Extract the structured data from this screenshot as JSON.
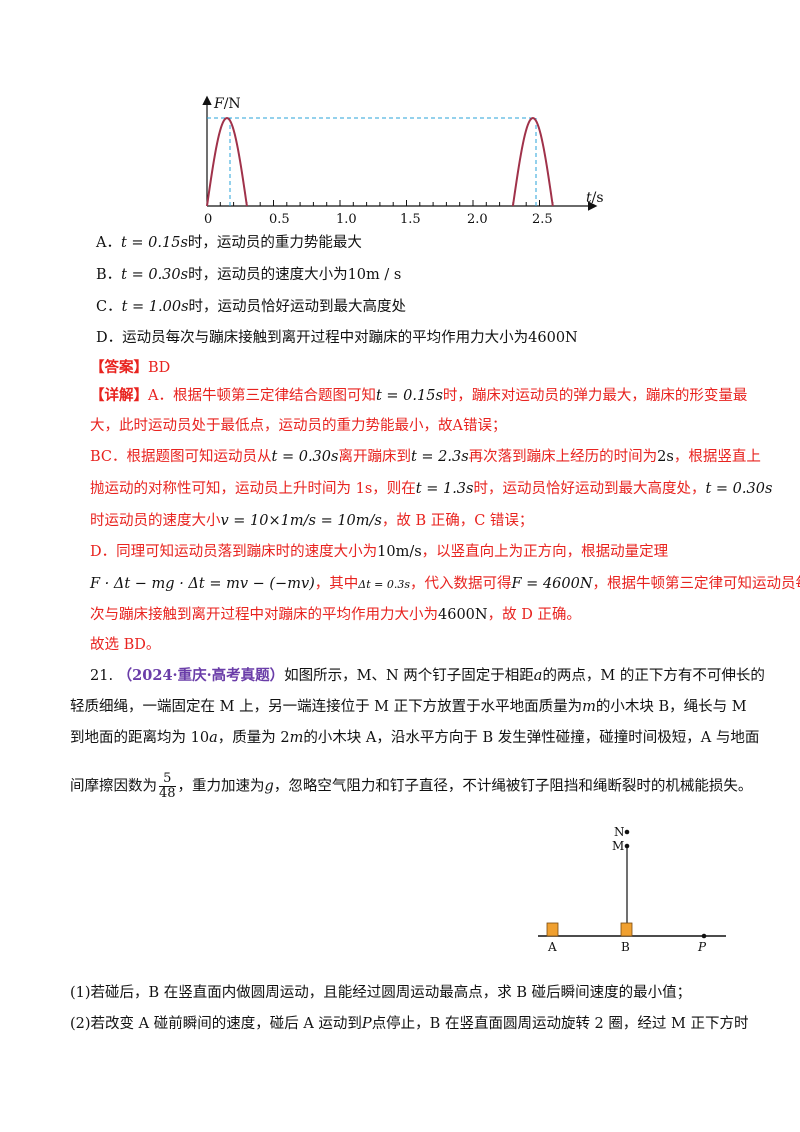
{
  "graph": {
    "y_axis_label": "F/N",
    "x_axis_label": "t/s",
    "ticks": [
      "0",
      "0.5",
      "1.0",
      "1.5",
      "2.0",
      "2.5"
    ]
  },
  "chart_data": {
    "type": "line",
    "xlabel": "t/s",
    "ylabel": "F/N",
    "x_ticks": [
      0,
      0.5,
      1.0,
      1.5,
      2.0,
      2.5
    ],
    "series": [
      {
        "x": [
          0,
          0.15,
          0.3
        ],
        "shape": "half-sine pulse",
        "peak_t": 0.15
      },
      {
        "x": [
          2.3,
          2.45,
          2.6
        ],
        "shape": "half-sine pulse",
        "peak_t": 2.45
      }
    ],
    "xlim": [
      0,
      2.7
    ],
    "colors": {
      "curve": "#a0324a",
      "dashed": "#29a3d9"
    }
  },
  "options": {
    "A": {
      "label": "A．",
      "math": "t = 0.15s",
      "text": "时，运动员的重力势能最大"
    },
    "B": {
      "label": "B．",
      "math": "t = 0.30s",
      "text": "时，运动员的速度大小为",
      "math2": "10m / s"
    },
    "C": {
      "label": "C．",
      "math": "t = 1.00s",
      "text": "时，运动员恰好运动到最大高度处"
    },
    "D": {
      "label": "D．",
      "text": "运动员每次与蹦床接触到离开过程中对蹦床的平均作用力大小为",
      "math": "4600N"
    }
  },
  "answer": {
    "tag": "【答案】",
    "value": "BD"
  },
  "explanation": {
    "tag": "【详解】",
    "l1a": "A．根据牛顿第三定律结合题图可知",
    "l1m": "t = 0.15s",
    "l1b": "时，蹦床对运动员的弹力最大，蹦床的形变量最",
    "l2": "大，此时运动员处于最低点，运动员的重力势能最小，故A错误；",
    "l3a": "BC．根据题图可知运动员从",
    "l3m1": "t = 0.30s",
    "l3b": "离开蹦床到",
    "l3m2": "t = 2.3s",
    "l3c": "再次落到蹦床上经历的时间为",
    "l3m3": "2s",
    "l3d": "，根据竖直上",
    "l4a": "抛运动的对称性可知，运动员上升时间为 1s，则在",
    "l4m1": "t = 1.3s",
    "l4b": "时，运动员恰好运动到最大高度处，",
    "l4m2": "t = 0.30s",
    "l5a": "时运动员的速度大小",
    "l5m": "v = 10×1m/s = 10m/s",
    "l5b": "，故 B 正确，C 错误；",
    "l6a": "D．同理可知运动员落到蹦床时的速度大小为",
    "l6m": "10m/s",
    "l6b": "，以竖直向上为正方向，根据动量定理",
    "l7m1": "F · Δt − mg · Δt = mv − (−mv)",
    "l7a": "，其中",
    "l7m2": "Δt = 0.3s",
    "l7b": "，代入数据可得",
    "l7m3": "F = 4600N",
    "l7c": "，根据牛顿第三定律可知运动员每",
    "l8a": "次与蹦床接触到离开过程中对蹦床的平均作用力大小为",
    "l8m": "4600N",
    "l8b": "，故 D 正确。",
    "l9": "故选 BD。"
  },
  "problem21": {
    "number": "21.",
    "source": "（2024·重庆·高考真题）",
    "l1a": "如图所示，M、N 两个钉子固定于相距",
    "l1m": "a",
    "l1b": "的两点，M 的正下方有不可伸长的",
    "l2a": "轻质细绳，一端固定在 M 上，另一端连接位于 M 正下方放置于水平地面质量为",
    "l2m": "m",
    "l2b": "的小木块 B，绳长与 M",
    "l3a": "到地面的距离均为 10",
    "l3m": "a",
    "l3b": "，质量为 2",
    "l3m2": "m",
    "l3c": "的小木块 A，沿水平方向于 B 发生弹性碰撞，碰撞时间极短，A 与地面",
    "l4a": "间摩擦因数为",
    "l4num": "5",
    "l4den": "48",
    "l4b": "，重力加速为",
    "l4m": "g",
    "l4c": "，忽略空气阻力和钉子直径，不计绳被钉子阻挡和绳断裂时的机械能损失。",
    "q1": "(1)若碰后，B 在竖直面内做圆周运动，且能经过圆周运动最高点，求 B 碰后瞬间速度的最小值；",
    "q2a": "(2)若改变 A 碰前瞬间的速度，碰后 A 运动到",
    "q2m": "P",
    "q2b": "点停止，B 在竖直面圆周运动旋转 2 圈，经过 M 正下方时"
  },
  "figure21": {
    "label_N": "N",
    "label_M": "M",
    "label_A": "A",
    "label_B": "B",
    "label_P": "P",
    "block_color": "#f0a030"
  }
}
